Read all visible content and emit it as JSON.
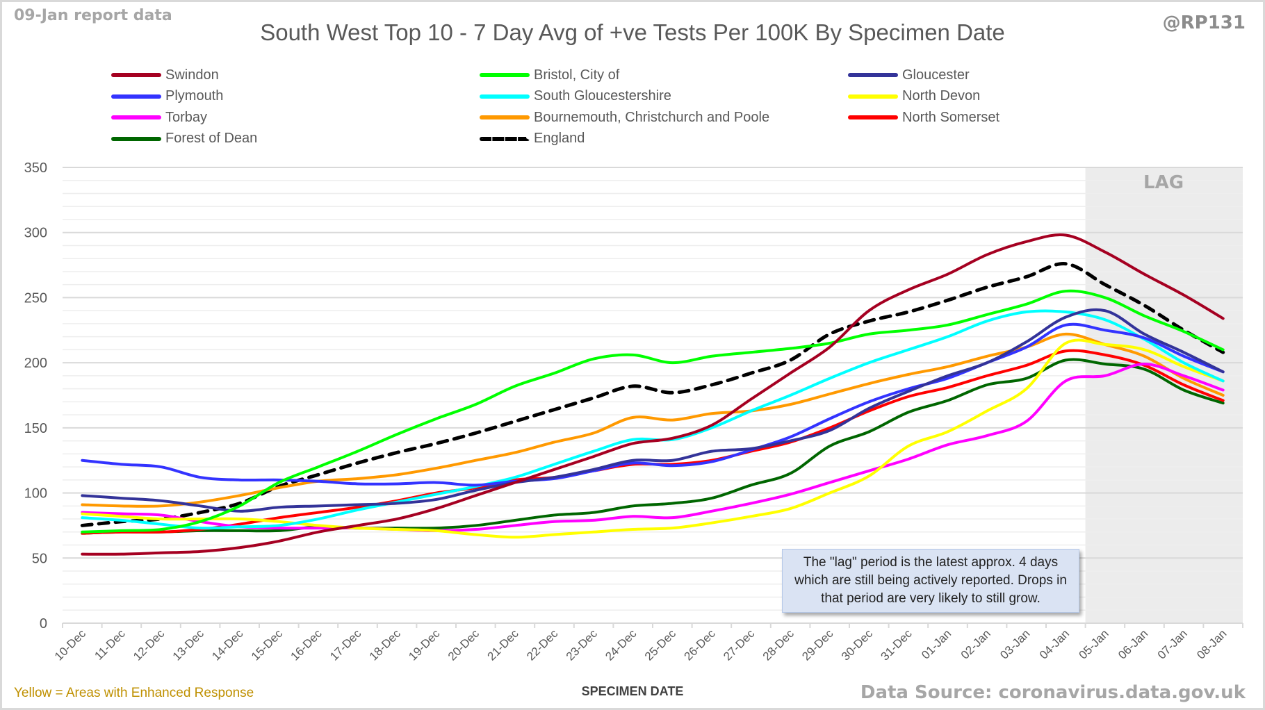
{
  "header": {
    "report_label": "09-Jan report data",
    "handle": "@RP131"
  },
  "footer": {
    "enhanced_note": "Yellow = Areas with Enhanced Response",
    "source": "Data Source: coronavirus.data.gov.uk"
  },
  "annotation": {
    "lag_label": "LAG",
    "note": "The \"lag\" period is the latest approx. 4 days which are still being actively reported.  Drops in that period are very likely to still grow.",
    "lag_start": "05-Jan",
    "lag_end": "08-Jan"
  },
  "chart_data": {
    "type": "line",
    "title": "South West Top 10 - 7 Day Avg of +ve Tests Per 100K By Specimen Date",
    "xlabel": "SPECIMEN DATE",
    "ylabel": "",
    "ylim": [
      0,
      350
    ],
    "yticks": [
      "0",
      "50",
      "100",
      "150",
      "200",
      "250",
      "300",
      "350"
    ],
    "ytick_values": [
      0,
      50,
      100,
      150,
      200,
      250,
      300,
      350
    ],
    "grid": true,
    "minor_grid_step": 10,
    "legend_position": "top",
    "categories": [
      "10-Dec",
      "11-Dec",
      "12-Dec",
      "13-Dec",
      "14-Dec",
      "15-Dec",
      "16-Dec",
      "17-Dec",
      "18-Dec",
      "19-Dec",
      "20-Dec",
      "21-Dec",
      "22-Dec",
      "23-Dec",
      "24-Dec",
      "25-Dec",
      "26-Dec",
      "27-Dec",
      "28-Dec",
      "29-Dec",
      "30-Dec",
      "31-Dec",
      "01-Jan",
      "02-Jan",
      "03-Jan",
      "04-Jan",
      "05-Jan",
      "06-Jan",
      "07-Jan",
      "08-Jan"
    ],
    "series": [
      {
        "name": "Swindon",
        "color": "#a50021",
        "dashed": false,
        "values": [
          53,
          53,
          54,
          55,
          58,
          63,
          70,
          75,
          80,
          88,
          98,
          108,
          118,
          128,
          138,
          142,
          152,
          172,
          192,
          212,
          240,
          256,
          268,
          283,
          293,
          298,
          285,
          268,
          252,
          234
        ]
      },
      {
        "name": "Bristol, City of",
        "color": "#00ff00",
        "dashed": false,
        "values": [
          70,
          71,
          72,
          78,
          90,
          108,
          120,
          132,
          145,
          157,
          168,
          182,
          192,
          203,
          206,
          200,
          205,
          208,
          211,
          215,
          222,
          225,
          229,
          237,
          245,
          255,
          250,
          236,
          224,
          210
        ]
      },
      {
        "name": "Gloucester",
        "color": "#333399",
        "dashed": false,
        "values": [
          98,
          96,
          94,
          90,
          86,
          89,
          90,
          91,
          92,
          95,
          102,
          108,
          112,
          118,
          125,
          125,
          132,
          134,
          140,
          148,
          165,
          178,
          190,
          200,
          216,
          235,
          240,
          222,
          208,
          193
        ]
      },
      {
        "name": "Plymouth",
        "color": "#3333ff",
        "dashed": false,
        "values": [
          125,
          122,
          120,
          112,
          110,
          110,
          109,
          107,
          107,
          108,
          106,
          109,
          111,
          117,
          123,
          121,
          124,
          133,
          143,
          157,
          170,
          180,
          188,
          200,
          212,
          229,
          225,
          219,
          205,
          193
        ]
      },
      {
        "name": "South Gloucestershire",
        "color": "#00ffff",
        "dashed": false,
        "values": [
          81,
          79,
          76,
          73,
          74,
          75,
          80,
          87,
          93,
          99,
          105,
          112,
          122,
          132,
          141,
          141,
          150,
          163,
          175,
          188,
          200,
          210,
          220,
          232,
          239,
          239,
          233,
          218,
          200,
          186
        ]
      },
      {
        "name": "North Devon",
        "color": "#ffff00",
        "dashed": false,
        "values": [
          84,
          82,
          80,
          80,
          80,
          78,
          75,
          73,
          72,
          71,
          68,
          66,
          68,
          70,
          72,
          73,
          77,
          82,
          88,
          100,
          113,
          136,
          147,
          163,
          180,
          215,
          214,
          210,
          197,
          186
        ]
      },
      {
        "name": "Torbay",
        "color": "#ff00ff",
        "dashed": false,
        "values": [
          85,
          84,
          83,
          78,
          74,
          73,
          73,
          73,
          72,
          71,
          72,
          75,
          78,
          79,
          82,
          81,
          86,
          92,
          99,
          108,
          117,
          126,
          137,
          144,
          155,
          186,
          190,
          199,
          190,
          179
        ]
      },
      {
        "name": "Bournemouth, Christchurch and Poole",
        "color": "#ff9900",
        "dashed": false,
        "values": [
          91,
          90,
          90,
          93,
          98,
          104,
          109,
          111,
          114,
          119,
          125,
          131,
          139,
          146,
          158,
          156,
          161,
          163,
          168,
          176,
          184,
          191,
          197,
          205,
          212,
          222,
          214,
          205,
          188,
          175
        ]
      },
      {
        "name": "North Somerset",
        "color": "#ff0000",
        "dashed": false,
        "values": [
          69,
          70,
          70,
          72,
          76,
          81,
          85,
          89,
          94,
          100,
          104,
          110,
          112,
          117,
          122,
          122,
          125,
          132,
          139,
          150,
          163,
          174,
          181,
          190,
          198,
          209,
          206,
          198,
          183,
          171
        ]
      },
      {
        "name": "Forest of Dean",
        "color": "#006600",
        "dashed": false,
        "values": [
          69,
          70,
          70,
          71,
          71,
          71,
          74,
          73,
          73,
          73,
          75,
          79,
          83,
          85,
          90,
          92,
          96,
          106,
          115,
          136,
          147,
          162,
          171,
          183,
          188,
          202,
          199,
          195,
          179,
          169
        ]
      },
      {
        "name": "England",
        "color": "#000000",
        "dashed": true,
        "values": [
          75,
          78,
          80,
          85,
          92,
          105,
          114,
          123,
          131,
          138,
          146,
          155,
          164,
          173,
          182,
          177,
          183,
          192,
          202,
          222,
          232,
          239,
          248,
          258,
          266,
          276,
          260,
          244,
          225,
          208
        ]
      }
    ]
  }
}
